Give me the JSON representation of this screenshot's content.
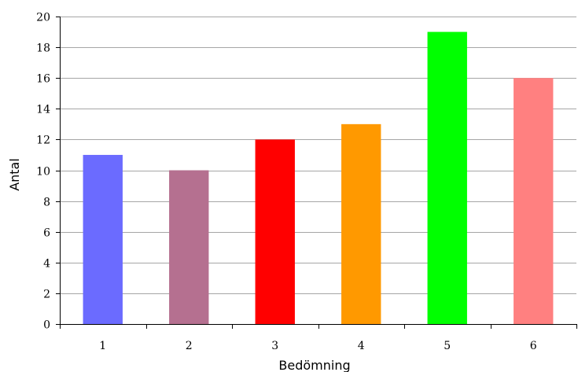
{
  "chart_data": {
    "type": "bar",
    "title": "",
    "xlabel": "Bedömning",
    "ylabel": "Antal",
    "categories": [
      "1",
      "2",
      "3",
      "4",
      "5",
      "6"
    ],
    "values": [
      11,
      10,
      12,
      13,
      19,
      16
    ],
    "bar_colors": [
      "#6b6bff",
      "#b57090",
      "#ff0000",
      "#ff9900",
      "#00ff00",
      "#ff8080"
    ],
    "ylim": [
      0,
      20
    ],
    "yticks": [
      0,
      2,
      4,
      6,
      8,
      10,
      12,
      14,
      16,
      18,
      20
    ],
    "grid": true,
    "legend": "none"
  }
}
